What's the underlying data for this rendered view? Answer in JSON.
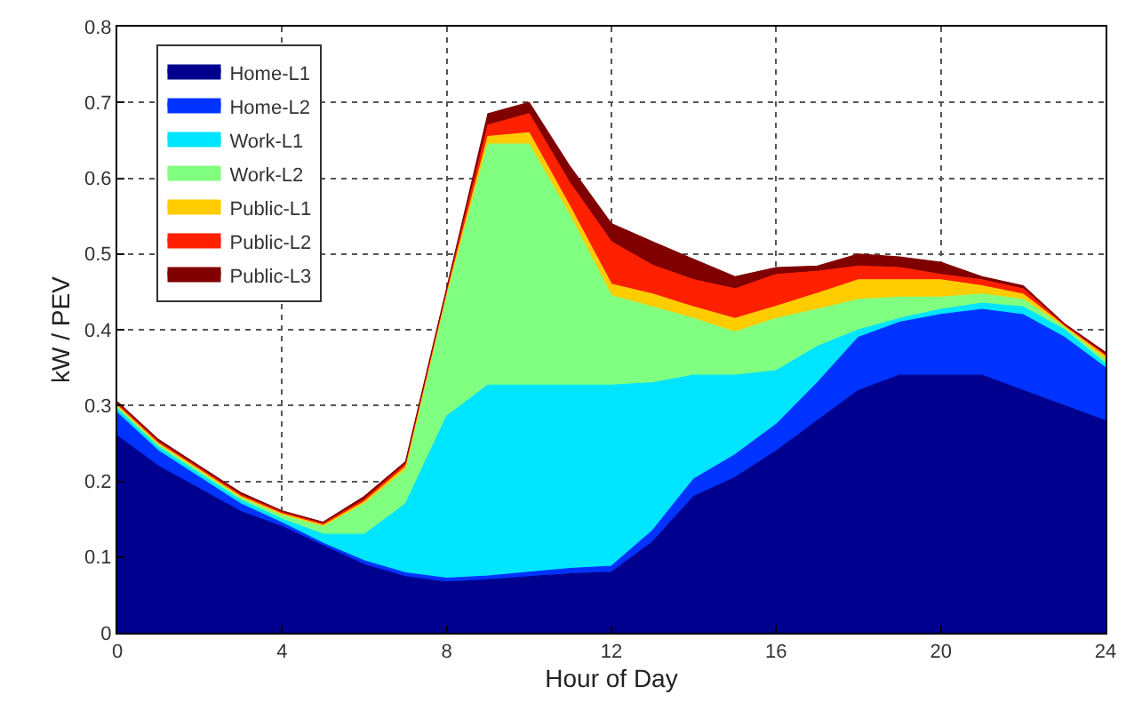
{
  "chart_data": {
    "type": "area",
    "stacked": true,
    "xlabel": "Hour of Day",
    "ylabel": "kW / PEV",
    "x": [
      0,
      1,
      2,
      3,
      4,
      5,
      6,
      7,
      8,
      9,
      10,
      11,
      12,
      13,
      14,
      15,
      16,
      17,
      18,
      19,
      20,
      21,
      22,
      23,
      24
    ],
    "series": [
      {
        "name": "Home-L1",
        "color": "#00008f",
        "values": [
          0.26,
          0.22,
          0.19,
          0.16,
          0.14,
          0.115,
          0.09,
          0.074,
          0.067,
          0.07,
          0.074,
          0.078,
          0.08,
          0.12,
          0.18,
          0.205,
          0.24,
          0.28,
          0.32,
          0.34,
          0.34,
          0.34,
          0.32,
          0.3,
          0.28
        ]
      },
      {
        "name": "Home-L2",
        "color": "#0033ff",
        "values": [
          0.03,
          0.02,
          0.015,
          0.01,
          0.005,
          0.003,
          0.005,
          0.005,
          0.005,
          0.005,
          0.006,
          0.007,
          0.008,
          0.015,
          0.023,
          0.03,
          0.035,
          0.05,
          0.07,
          0.07,
          0.08,
          0.087,
          0.1,
          0.09,
          0.07
        ]
      },
      {
        "name": "Work-L1",
        "color": "#00e5ff",
        "values": [
          0.005,
          0.005,
          0.005,
          0.005,
          0.005,
          0.012,
          0.035,
          0.091,
          0.214,
          0.252,
          0.247,
          0.242,
          0.239,
          0.195,
          0.137,
          0.105,
          0.071,
          0.048,
          0.01,
          0.005,
          0.007,
          0.008,
          0.01,
          0.01,
          0.005
        ]
      },
      {
        "name": "Work-L2",
        "color": "#80ff80",
        "values": [
          0.003,
          0.003,
          0.003,
          0.003,
          0.005,
          0.01,
          0.04,
          0.045,
          0.159,
          0.318,
          0.318,
          0.223,
          0.118,
          0.1,
          0.075,
          0.057,
          0.069,
          0.049,
          0.04,
          0.028,
          0.016,
          0.012,
          0.01,
          0.003,
          0.005
        ]
      },
      {
        "name": "Public-L1",
        "color": "#ffcc00",
        "values": [
          0.002,
          0.002,
          0.002,
          0.002,
          0.002,
          0.002,
          0.003,
          0.004,
          0.004,
          0.01,
          0.015,
          0.012,
          0.015,
          0.017,
          0.015,
          0.018,
          0.016,
          0.021,
          0.026,
          0.023,
          0.023,
          0.011,
          0.007,
          0.002,
          0.005
        ]
      },
      {
        "name": "Public-L2",
        "color": "#ff2000",
        "values": [
          0.002,
          0.002,
          0.002,
          0.002,
          0.002,
          0.002,
          0.003,
          0.004,
          0.003,
          0.015,
          0.025,
          0.031,
          0.056,
          0.038,
          0.036,
          0.039,
          0.042,
          0.029,
          0.018,
          0.016,
          0.007,
          0.008,
          0.007,
          0.001,
          0.002
        ]
      },
      {
        "name": "Public-L3",
        "color": "#800000",
        "values": [
          0.003,
          0.003,
          0.003,
          0.003,
          0.002,
          0.002,
          0.004,
          0.003,
          0.003,
          0.015,
          0.015,
          0.022,
          0.024,
          0.031,
          0.027,
          0.016,
          0.009,
          0.007,
          0.016,
          0.014,
          0.016,
          0.004,
          0.004,
          0.002,
          0.003
        ]
      }
    ],
    "xlim": [
      0,
      24
    ],
    "xticks": [
      0,
      4,
      8,
      12,
      16,
      20,
      24
    ],
    "ylim": [
      0,
      0.8
    ],
    "yticks": [
      0,
      0.1,
      0.2,
      0.3,
      0.4,
      0.5,
      0.6,
      0.7,
      0.8
    ],
    "grid": true,
    "legend": "top left"
  }
}
